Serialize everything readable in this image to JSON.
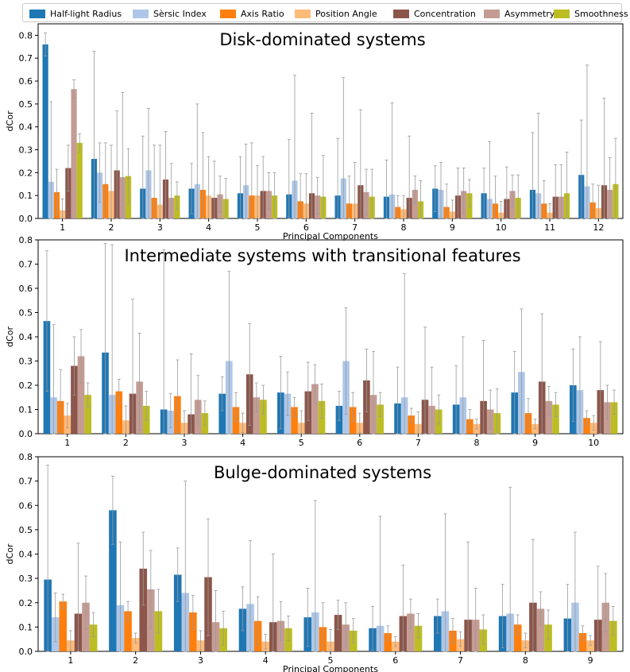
{
  "legend": {
    "items": [
      {
        "label": "Half-light Radius",
        "color": "#1f77b4"
      },
      {
        "label": "Sèrsic Index",
        "color": "#aec7e8"
      },
      {
        "label": "Axis Ratio",
        "color": "#ff7f0e"
      },
      {
        "label": "Position Angle",
        "color": "#ffbb78"
      },
      {
        "label": "Concentration",
        "color": "#8c564b"
      },
      {
        "label": "Asymmetry",
        "color": "#c49c94"
      },
      {
        "label": "Smoothness",
        "color": "#bcbd22"
      }
    ]
  },
  "chart_data": [
    {
      "type": "bar",
      "title": "Disk-dominated systems",
      "xlabel": "Principal Components",
      "ylabel": "dCor",
      "ylim": [
        0,
        0.85
      ],
      "yticks": [
        0.0,
        0.1,
        0.2,
        0.3,
        0.4,
        0.5,
        0.6,
        0.7,
        0.8
      ],
      "categories": [
        "1",
        "2",
        "3",
        "4",
        "5",
        "6",
        "7",
        "8",
        "9",
        "10",
        "11",
        "12"
      ],
      "series": [
        {
          "name": "Half-light Radius",
          "values": [
            0.76,
            0.26,
            0.13,
            0.13,
            0.11,
            0.105,
            0.1,
            0.095,
            0.13,
            0.11,
            0.125,
            0.19
          ],
          "errors": [
            0.05,
            0.47,
            0.23,
            0.11,
            0.16,
            0.24,
            0.25,
            0.16,
            0.1,
            0.11,
            0.25,
            0.24
          ]
        },
        {
          "name": "Sèrsic Index",
          "values": [
            0.16,
            0.2,
            0.21,
            0.15,
            0.145,
            0.165,
            0.175,
            0.105,
            0.125,
            0.085,
            0.11,
            0.14
          ],
          "errors": [
            0.35,
            0.13,
            0.27,
            0.35,
            0.18,
            0.46,
            0.44,
            0.4,
            0.12,
            0.25,
            0.35,
            0.53
          ]
        },
        {
          "name": "Axis Ratio",
          "values": [
            0.115,
            0.15,
            0.09,
            0.125,
            0.1,
            0.075,
            0.065,
            0.05,
            0.05,
            0.065,
            0.065,
            0.07
          ],
          "errors": [
            0.1,
            0.18,
            0.23,
            0.25,
            0.23,
            0.12,
            0.12,
            0.05,
            0.1,
            0.12,
            0.1,
            0.08
          ]
        },
        {
          "name": "Position Angle",
          "values": [
            0.035,
            0.12,
            0.06,
            0.1,
            0.1,
            0.065,
            0.065,
            0.04,
            0.03,
            0.025,
            0.025,
            0.045
          ],
          "errors": [
            0.05,
            0.2,
            0.26,
            0.17,
            0.13,
            0.13,
            0.18,
            0.06,
            0.05,
            0.05,
            0.04,
            0.1
          ]
        },
        {
          "name": "Concentration",
          "values": [
            0.22,
            0.21,
            0.17,
            0.09,
            0.12,
            0.11,
            0.145,
            0.09,
            0.1,
            0.085,
            0.095,
            0.145
          ],
          "errors": [
            0.1,
            0.26,
            0.21,
            0.16,
            0.15,
            0.35,
            0.33,
            0.27,
            0.12,
            0.14,
            0.14,
            0.38
          ]
        },
        {
          "name": "Asymmetry",
          "values": [
            0.565,
            0.18,
            0.09,
            0.105,
            0.12,
            0.1,
            0.115,
            0.125,
            0.12,
            0.12,
            0.095,
            0.125
          ],
          "errors": [
            0.04,
            0.37,
            0.15,
            0.08,
            0.08,
            0.08,
            0.1,
            0.06,
            0.1,
            0.07,
            0.14,
            0.14
          ]
        },
        {
          "name": "Smoothness",
          "values": [
            0.33,
            0.185,
            0.1,
            0.085,
            0.1,
            0.095,
            0.095,
            0.075,
            0.11,
            0.09,
            0.11,
            0.15
          ],
          "errors": [
            0.04,
            0.12,
            0.06,
            0.09,
            0.1,
            0.18,
            0.12,
            0.09,
            0.06,
            0.1,
            0.18,
            0.2
          ]
        }
      ]
    },
    {
      "type": "bar",
      "title": "Intermediate systems with transitional features",
      "xlabel": "",
      "ylabel": "dCor",
      "ylim": [
        0,
        0.8
      ],
      "yticks": [
        0.0,
        0.1,
        0.2,
        0.3,
        0.4,
        0.5,
        0.6,
        0.7,
        0.8
      ],
      "categories": [
        "1",
        "2",
        "3",
        "4",
        "5",
        "6",
        "7",
        "8",
        "9",
        "10"
      ],
      "series": [
        {
          "name": "Half-light Radius",
          "values": [
            0.465,
            0.335,
            0.1,
            0.165,
            0.17,
            0.115,
            0.125,
            0.12,
            0.17,
            0.2
          ],
          "errors": [
            0.29,
            0.45,
            0.66,
            0.07,
            0.15,
            0.06,
            0.15,
            0.16,
            0.17,
            0.15
          ]
        },
        {
          "name": "Sèrsic Index",
          "values": [
            0.15,
            0.16,
            0.095,
            0.3,
            0.165,
            0.3,
            0.15,
            0.15,
            0.255,
            0.18
          ],
          "errors": [
            0.3,
            0.62,
            0.07,
            0.37,
            0.09,
            0.22,
            0.51,
            0.25,
            0.26,
            0.22
          ]
        },
        {
          "name": "Axis Ratio",
          "values": [
            0.135,
            0.175,
            0.155,
            0.11,
            0.11,
            0.11,
            0.075,
            0.06,
            0.085,
            0.065
          ],
          "errors": [
            0.13,
            0.05,
            0.15,
            0.06,
            0.04,
            0.06,
            0.03,
            0.04,
            0.06,
            0.03
          ]
        },
        {
          "name": "Position Angle",
          "values": [
            0.075,
            0.055,
            0.045,
            0.045,
            0.045,
            0.045,
            0.04,
            0.04,
            0.04,
            0.045
          ],
          "errors": [
            0.05,
            0.06,
            0.05,
            0.04,
            0.05,
            0.04,
            0.05,
            0.02,
            0.02,
            0.03
          ]
        },
        {
          "name": "Concentration",
          "values": [
            0.28,
            0.165,
            0.08,
            0.245,
            0.175,
            0.22,
            0.14,
            0.135,
            0.215,
            0.18
          ],
          "errors": [
            0.12,
            0.39,
            0.25,
            0.21,
            0.12,
            0.13,
            0.3,
            0.25,
            0.28,
            0.2
          ]
        },
        {
          "name": "Asymmetry",
          "values": [
            0.32,
            0.215,
            0.14,
            0.15,
            0.205,
            0.16,
            0.115,
            0.1,
            0.135,
            0.13
          ],
          "errors": [
            0.11,
            0.2,
            0.1,
            0.06,
            0.08,
            0.18,
            0.16,
            0.08,
            0.06,
            0.07
          ]
        },
        {
          "name": "Smoothness",
          "values": [
            0.16,
            0.115,
            0.085,
            0.14,
            0.135,
            0.12,
            0.1,
            0.085,
            0.12,
            0.13
          ],
          "errors": [
            0.05,
            0.06,
            0.05,
            0.06,
            0.07,
            0.05,
            0.06,
            0.1,
            0.05,
            0.05
          ]
        }
      ]
    },
    {
      "type": "bar",
      "title": "Bulge-dominated systems",
      "xlabel": "Principal Components",
      "ylabel": "dCor",
      "ylim": [
        0,
        0.8
      ],
      "yticks": [
        0.0,
        0.1,
        0.2,
        0.3,
        0.4,
        0.5,
        0.6,
        0.7,
        0.8
      ],
      "categories": [
        "1",
        "2",
        "3",
        "4",
        "5",
        "6",
        "7",
        "8",
        "9"
      ],
      "series": [
        {
          "name": "Half-light Radius",
          "values": [
            0.295,
            0.58,
            0.315,
            0.175,
            0.14,
            0.095,
            0.145,
            0.145,
            0.135
          ],
          "errors": [
            0.47,
            0.14,
            0.11,
            0.09,
            0.12,
            0.09,
            0.07,
            0.13,
            0.14
          ]
        },
        {
          "name": "Sèrsic Index",
          "values": [
            0.14,
            0.19,
            0.24,
            0.195,
            0.16,
            0.105,
            0.165,
            0.155,
            0.2
          ],
          "errors": [
            0.1,
            0.26,
            0.46,
            0.26,
            0.46,
            0.45,
            0.4,
            0.52,
            0.29
          ]
        },
        {
          "name": "Axis Ratio",
          "values": [
            0.205,
            0.165,
            0.16,
            0.125,
            0.1,
            0.075,
            0.085,
            0.11,
            0.075
          ],
          "errors": [
            0.03,
            0.04,
            0.07,
            0.1,
            0.1,
            0.03,
            0.05,
            0.04,
            0.03
          ]
        },
        {
          "name": "Position Angle",
          "values": [
            0.045,
            0.055,
            0.045,
            0.04,
            0.04,
            0.04,
            0.05,
            0.045,
            0.045
          ],
          "errors": [
            0.04,
            0.02,
            0.04,
            0.03,
            0.05,
            0.02,
            0.03,
            0.03,
            0.02
          ]
        },
        {
          "name": "Concentration",
          "values": [
            0.155,
            0.34,
            0.305,
            0.12,
            0.15,
            0.145,
            0.13,
            0.2,
            0.13
          ],
          "errors": [
            0.29,
            0.15,
            0.24,
            0.28,
            0.06,
            0.21,
            0.32,
            0.26,
            0.22
          ]
        },
        {
          "name": "Asymmetry",
          "values": [
            0.2,
            0.255,
            0.12,
            0.125,
            0.11,
            0.155,
            0.13,
            0.175,
            0.2
          ],
          "errors": [
            0.11,
            0.16,
            0.13,
            0.08,
            0.09,
            0.06,
            0.13,
            0.07,
            0.12
          ]
        },
        {
          "name": "Smoothness",
          "values": [
            0.11,
            0.165,
            0.095,
            0.095,
            0.085,
            0.105,
            0.09,
            0.11,
            0.125
          ],
          "errors": [
            0.05,
            0.09,
            0.07,
            0.05,
            0.05,
            0.05,
            0.06,
            0.06,
            0.06
          ]
        }
      ]
    }
  ]
}
